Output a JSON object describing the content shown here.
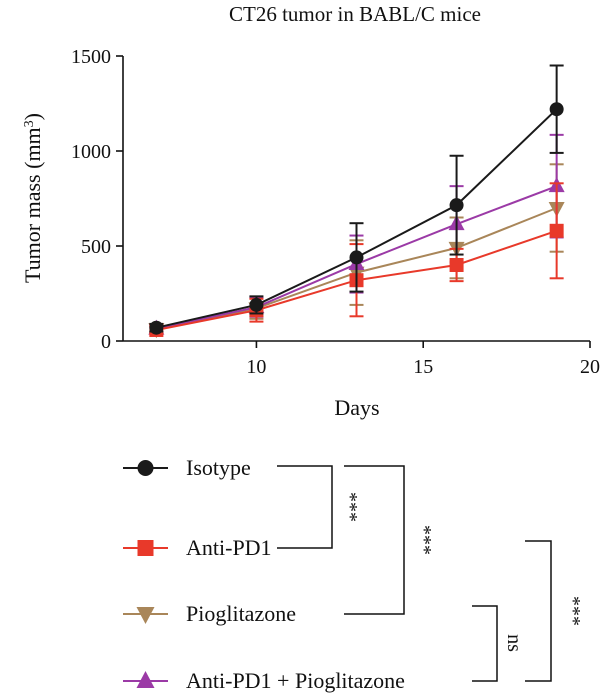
{
  "chart_data": {
    "type": "line",
    "title": "CT26 tumor in BABL/C mice",
    "xlabel": "Days",
    "ylabel": "Tumor mass (mm",
    "ylabel_sup": "3",
    "ylabel_end": ")",
    "xlim": [
      6,
      20
    ],
    "ylim": [
      0,
      1500
    ],
    "xticks": [
      10,
      15,
      20
    ],
    "yticks": [
      0,
      500,
      1000,
      1500
    ],
    "x": [
      7,
      10,
      13,
      16,
      19
    ],
    "grid": false,
    "legend_position": "below",
    "series": [
      {
        "name": "Isotype",
        "color": "#1a1a1a",
        "marker": "circle",
        "values": [
          70,
          190,
          440,
          715,
          1220
        ],
        "errors": [
          20,
          45,
          180,
          260,
          230
        ]
      },
      {
        "name": "Anti-PD1",
        "color": "#e8392a",
        "marker": "square",
        "values": [
          58,
          162,
          320,
          400,
          580
        ],
        "errors": [
          18,
          60,
          190,
          85,
          250
        ]
      },
      {
        "name": "Pioglitazone",
        "color": "#a98659",
        "marker": "triangle-down",
        "values": [
          62,
          172,
          360,
          490,
          700
        ],
        "errors": [
          18,
          55,
          170,
          160,
          230
        ]
      },
      {
        "name": "Anti-PD1 + Pioglitazone",
        "color": "#9b3aa6",
        "marker": "triangle-up",
        "values": [
          65,
          178,
          405,
          615,
          815
        ],
        "errors": [
          18,
          50,
          150,
          200,
          270
        ]
      }
    ],
    "comparisons": [
      {
        "groups": [
          "Isotype",
          "Anti-PD1"
        ],
        "label": "***"
      },
      {
        "groups": [
          "Isotype",
          "Pioglitazone"
        ],
        "label": "***"
      },
      {
        "groups": [
          "Pioglitazone",
          "Anti-PD1 + Pioglitazone"
        ],
        "label": "ns"
      },
      {
        "groups": [
          "Anti-PD1",
          "Anti-PD1 + Pioglitazone"
        ],
        "label": "***"
      }
    ]
  }
}
